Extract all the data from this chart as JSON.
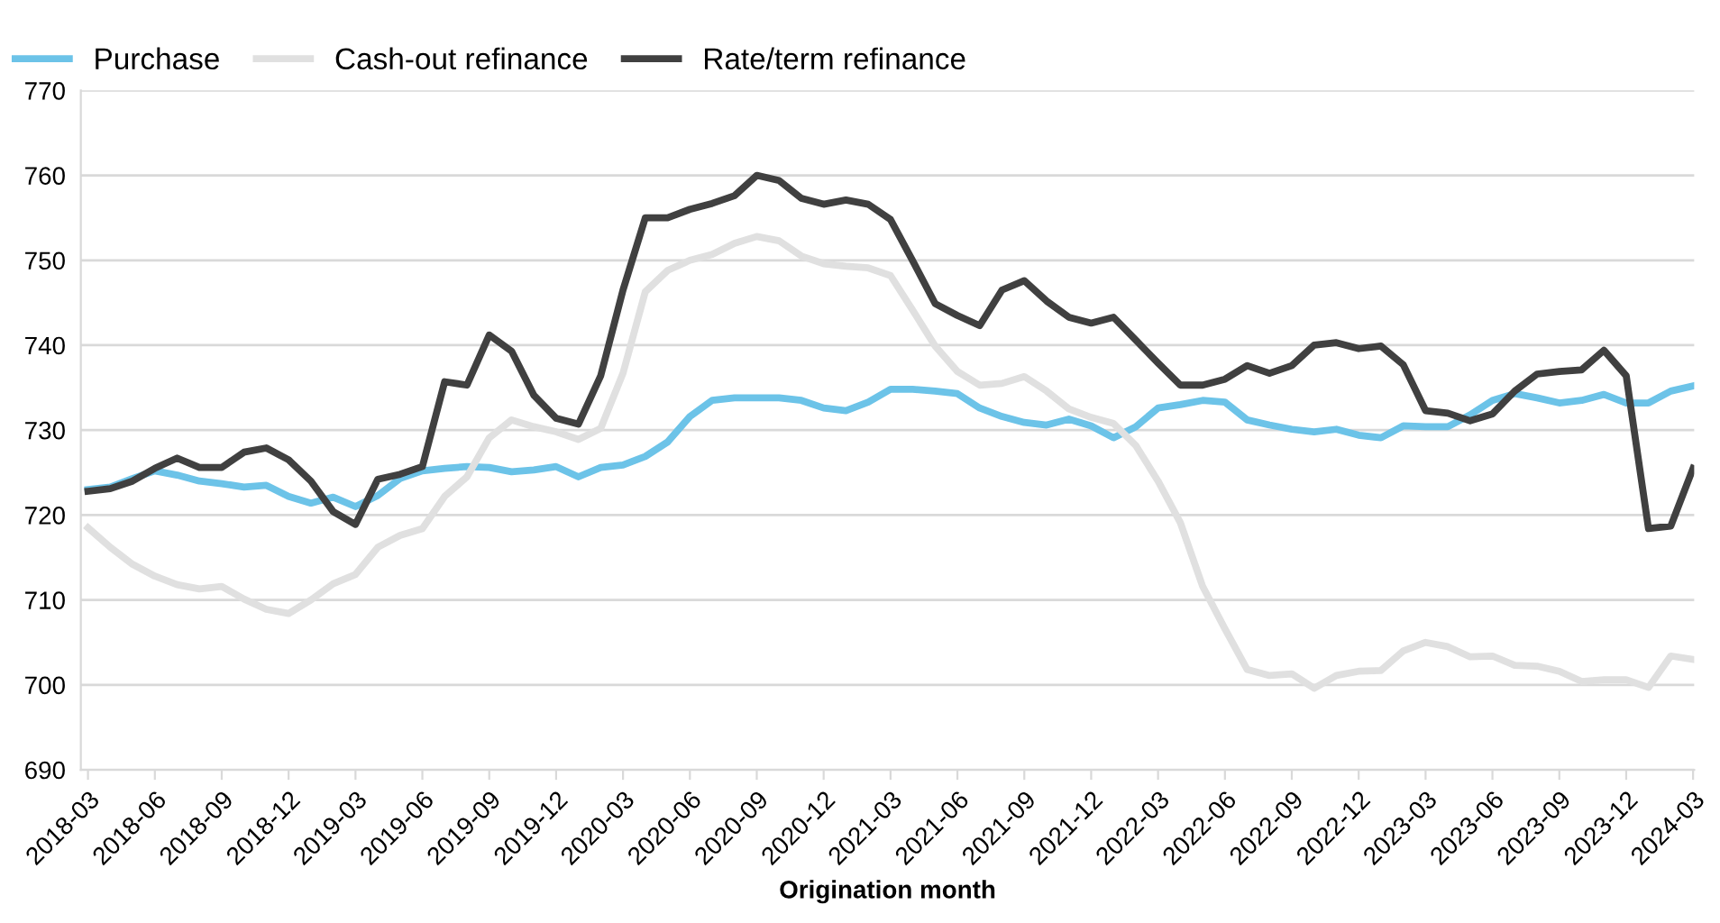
{
  "chart_data": {
    "type": "line",
    "xlabel": "Origination month",
    "categories": [
      "2018-03",
      null,
      null,
      "2018-06",
      null,
      null,
      "2018-09",
      null,
      null,
      "2018-12",
      null,
      null,
      "2019-03",
      null,
      null,
      "2019-06",
      null,
      null,
      "2019-09",
      null,
      null,
      "2019-12",
      null,
      null,
      "2020-03",
      null,
      null,
      "2020-06",
      null,
      null,
      "2020-09",
      null,
      null,
      "2020-12",
      null,
      null,
      "2021-03",
      null,
      null,
      "2021-06",
      null,
      null,
      "2021-09",
      null,
      null,
      "2021-12",
      null,
      null,
      "2022-03",
      null,
      null,
      "2022-06",
      null,
      null,
      "2022-09",
      null,
      null,
      "2022-12",
      null,
      null,
      "2023-03",
      null,
      null,
      "2023-06",
      null,
      null,
      "2023-09",
      null,
      null,
      "2023-12",
      null,
      null,
      "2024-03"
    ],
    "series": [
      {
        "name": "Purchase",
        "color": "#6cc3e8",
        "values": [
          723,
          723.3,
          724.3,
          725.2,
          724.7,
          724,
          723.7,
          723.3,
          723.5,
          722.2,
          721.4,
          722.1,
          721,
          722.3,
          724.3,
          725.2,
          725.5,
          725.7,
          725.6,
          725.1,
          725.3,
          725.7,
          724.5,
          725.6,
          725.9,
          726.9,
          728.6,
          731.6,
          733.5,
          733.8,
          733.8,
          733.8,
          733.5,
          732.6,
          732.3,
          733.3,
          734.8,
          734.8,
          734.6,
          734.3,
          732.6,
          731.6,
          730.9,
          730.6,
          731.3,
          730.5,
          729.1,
          730.4,
          732.6,
          733,
          733.5,
          733.3,
          731.2,
          730.6,
          730.1,
          729.8,
          730.1,
          729.4,
          729.1,
          730.5,
          730.4,
          730.4,
          731.8,
          733.5,
          734.3,
          733.8,
          733.2,
          733.5,
          734.2,
          733.2,
          733.2,
          734.6,
          735.2
        ]
      },
      {
        "name": "Cash-out refinance",
        "color": "#e0e0e0",
        "values": [
          718.5,
          716.2,
          714.2,
          712.8,
          711.8,
          711.3,
          711.6,
          710.1,
          708.9,
          708.4,
          710,
          711.9,
          713,
          716.2,
          717.6,
          718.4,
          722.2,
          724.5,
          729.1,
          731.2,
          730.4,
          729.8,
          728.9,
          730.2,
          736.7,
          746.3,
          748.8,
          750,
          750.7,
          752,
          752.8,
          752.3,
          750.5,
          749.6,
          749.3,
          749.1,
          748.2,
          744.1,
          739.9,
          736.9,
          735.3,
          735.5,
          736.3,
          734.6,
          732.5,
          731.5,
          730.8,
          728.2,
          724,
          719.1,
          711.6,
          706.6,
          701.8,
          701.1,
          701.3,
          699.6,
          701.1,
          701.6,
          701.7,
          704,
          705,
          704.5,
          703.3,
          703.4,
          702.3,
          702.2,
          701.6,
          700.4,
          700.6,
          700.6,
          699.7,
          703.4,
          703
        ]
      },
      {
        "name": "Rate/term refinance",
        "color": "#404040",
        "values": [
          722.8,
          723.1,
          724,
          725.5,
          726.7,
          725.6,
          725.6,
          727.4,
          727.9,
          726.5,
          724,
          720.4,
          718.9,
          724.2,
          724.8,
          725.7,
          735.7,
          735.3,
          741.2,
          739.3,
          734.1,
          731.4,
          730.7,
          736.4,
          746.5,
          755,
          755,
          756,
          756.7,
          757.6,
          760,
          759.4,
          757.3,
          756.6,
          757.1,
          756.6,
          754.8,
          749.9,
          744.9,
          743.5,
          742.3,
          746.5,
          747.6,
          745.2,
          743.3,
          742.6,
          743.3,
          740.6,
          737.9,
          735.3,
          735.3,
          736,
          737.6,
          736.7,
          737.6,
          740,
          740.3,
          739.6,
          739.9,
          737.7,
          732.3,
          732,
          731.1,
          731.9,
          734.6,
          736.6,
          736.9,
          737.1,
          739.4,
          736.4,
          718.4,
          718.7,
          725.5
        ]
      }
    ],
    "ylim": [
      690,
      770
    ],
    "yticks": [
      690,
      700,
      710,
      720,
      730,
      740,
      750,
      760,
      770
    ],
    "grid": "y",
    "legend": "top left",
    "marker": "none",
    "line_style": "solid"
  }
}
